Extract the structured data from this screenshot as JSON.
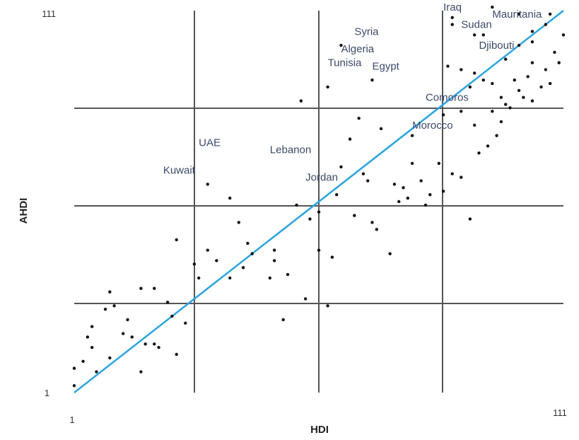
{
  "chart_data": {
    "type": "scatter",
    "xlabel": "HDI",
    "ylabel": "AHDI",
    "xlim": [
      1,
      111
    ],
    "ylim": [
      1,
      111
    ],
    "x_tick_labels": [
      {
        "value": 1,
        "label": "1"
      },
      {
        "value": 111,
        "label": "111"
      }
    ],
    "y_tick_labels": [
      {
        "value": 1,
        "label": "1"
      },
      {
        "value": 111,
        "label": "111"
      }
    ],
    "gridlines_x": [
      1,
      56,
      111
    ],
    "gridlines_y": [
      1,
      56,
      111
    ],
    "grid": true,
    "legend": false,
    "colors": {
      "points": "#111111",
      "fit_line": "#2aa3e0",
      "grid": "#555555"
    },
    "fit_line": {
      "x": [
        1,
        111
      ],
      "y": [
        1,
        111
      ]
    },
    "points": [
      {
        "x": 1,
        "y": 8
      },
      {
        "x": 3,
        "y": 10
      },
      {
        "x": 4,
        "y": 17
      },
      {
        "x": 5,
        "y": 20
      },
      {
        "x": 6,
        "y": 7
      },
      {
        "x": 8,
        "y": 25
      },
      {
        "x": 9,
        "y": 11
      },
      {
        "x": 10,
        "y": 26
      },
      {
        "x": 12,
        "y": 18
      },
      {
        "x": 13,
        "y": 22
      },
      {
        "x": 14,
        "y": 17
      },
      {
        "x": 16,
        "y": 7
      },
      {
        "x": 17,
        "y": 15
      },
      {
        "x": 19,
        "y": 15
      },
      {
        "x": 19,
        "y": 31
      },
      {
        "x": 20,
        "y": 14
      },
      {
        "x": 22,
        "y": 27
      },
      {
        "x": 23,
        "y": 23
      },
      {
        "x": 24,
        "y": 12
      },
      {
        "x": 26,
        "y": 21
      },
      {
        "x": 28,
        "y": 38
      },
      {
        "x": 29,
        "y": 34
      },
      {
        "x": 31,
        "y": 61
      },
      {
        "x": 33,
        "y": 39
      },
      {
        "x": 36,
        "y": 34
      },
      {
        "x": 38,
        "y": 50
      },
      {
        "x": 39,
        "y": 37
      },
      {
        "x": 40,
        "y": 44
      },
      {
        "x": 41,
        "y": 41
      },
      {
        "x": 45,
        "y": 34
      },
      {
        "x": 46,
        "y": 39
      },
      {
        "x": 48,
        "y": 22
      },
      {
        "x": 49,
        "y": 35
      },
      {
        "x": 51,
        "y": 55
      },
      {
        "x": 53,
        "y": 28
      },
      {
        "x": 54,
        "y": 51
      },
      {
        "x": 56,
        "y": 53
      },
      {
        "x": 58,
        "y": 26
      },
      {
        "x": 59,
        "y": 40
      },
      {
        "x": 60,
        "y": 58
      },
      {
        "x": 61,
        "y": 66
      },
      {
        "x": 63,
        "y": 74
      },
      {
        "x": 64,
        "y": 52
      },
      {
        "x": 65,
        "y": 80
      },
      {
        "x": 66,
        "y": 64
      },
      {
        "x": 67,
        "y": 62
      },
      {
        "x": 69,
        "y": 48
      },
      {
        "x": 70,
        "y": 77
      },
      {
        "x": 72,
        "y": 41
      },
      {
        "x": 73,
        "y": 61
      },
      {
        "x": 74,
        "y": 56
      },
      {
        "x": 75,
        "y": 60
      },
      {
        "x": 76,
        "y": 57
      },
      {
        "x": 77,
        "y": 67
      },
      {
        "x": 79,
        "y": 62
      },
      {
        "x": 80,
        "y": 55
      },
      {
        "x": 81,
        "y": 58
      },
      {
        "x": 83,
        "y": 67
      },
      {
        "x": 84,
        "y": 59
      },
      {
        "x": 86,
        "y": 64
      },
      {
        "x": 88,
        "y": 63
      },
      {
        "x": 90,
        "y": 51
      },
      {
        "x": 92,
        "y": 70
      },
      {
        "x": 94,
        "y": 72
      },
      {
        "x": 96,
        "y": 75
      },
      {
        "x": 97,
        "y": 79
      },
      {
        "x": 98,
        "y": 84
      },
      {
        "x": 100,
        "y": 91
      },
      {
        "x": 101,
        "y": 88
      },
      {
        "x": 102,
        "y": 86
      },
      {
        "x": 103,
        "y": 92
      },
      {
        "x": 104,
        "y": 96
      },
      {
        "x": 106,
        "y": 89
      },
      {
        "x": 107,
        "y": 94
      },
      {
        "x": 108,
        "y": 90
      },
      {
        "x": 109,
        "y": 99
      },
      {
        "x": 110,
        "y": 96
      },
      {
        "x": 111,
        "y": 104
      },
      {
        "x": 1,
        "y": 3
      },
      {
        "x": 5,
        "y": 14
      },
      {
        "x": 9,
        "y": 30
      },
      {
        "x": 16,
        "y": 31
      },
      {
        "x": 24,
        "y": 45
      },
      {
        "x": 31,
        "y": 42
      },
      {
        "x": 36,
        "y": 57
      },
      {
        "x": 46,
        "y": 42
      },
      {
        "x": 56,
        "y": 42
      },
      {
        "x": 68,
        "y": 50
      },
      {
        "x": 77,
        "y": 75
      },
      {
        "x": 84,
        "y": 81
      },
      {
        "x": 88,
        "y": 82
      },
      {
        "x": 91,
        "y": 78
      },
      {
        "x": 95,
        "y": 82
      },
      {
        "x": 99,
        "y": 83
      },
      {
        "x": 101,
        "y": 101
      },
      {
        "x": 104,
        "y": 105
      },
      {
        "x": 107,
        "y": 107
      },
      {
        "x": 86,
        "y": 109
      },
      {
        "x": 93,
        "y": 104
      },
      {
        "x": 98,
        "y": 97
      },
      {
        "x": 104,
        "y": 102
      },
      {
        "x": 104,
        "y": 85
      },
      {
        "x": 97,
        "y": 86
      },
      {
        "x": 93,
        "y": 91
      },
      {
        "x": 88,
        "y": 94
      },
      {
        "x": 91,
        "y": 104
      },
      {
        "x": 95,
        "y": 112
      },
      {
        "x": 101,
        "y": 110
      },
      {
        "x": 108,
        "y": 110
      },
      {
        "x": 61,
        "y": 101
      },
      {
        "x": 58,
        "y": 89
      },
      {
        "x": 68,
        "y": 91
      },
      {
        "x": 52,
        "y": 85
      },
      {
        "x": 90,
        "y": 89
      },
      {
        "x": 95,
        "y": 90
      },
      {
        "x": 91,
        "y": 93
      },
      {
        "x": 85,
        "y": 95
      },
      {
        "x": 86,
        "y": 107
      }
    ],
    "annotations": [
      {
        "label": "Iraq",
        "x": 84,
        "y": 111
      },
      {
        "label": "Mauritania",
        "x": 95,
        "y": 109
      },
      {
        "label": "Sudan",
        "x": 88,
        "y": 106
      },
      {
        "label": "Syria",
        "x": 64,
        "y": 104
      },
      {
        "label": "Djibouti",
        "x": 92,
        "y": 100
      },
      {
        "label": "Algeria",
        "x": 61,
        "y": 99
      },
      {
        "label": "Tunisia",
        "x": 58,
        "y": 95
      },
      {
        "label": "Egypt",
        "x": 68,
        "y": 94
      },
      {
        "label": "Comoros",
        "x": 80,
        "y": 85
      },
      {
        "label": "Morocco",
        "x": 77,
        "y": 77
      },
      {
        "label": "UAE",
        "x": 29,
        "y": 72
      },
      {
        "label": "Lebanon",
        "x": 45,
        "y": 70
      },
      {
        "label": "Kuwait",
        "x": 21,
        "y": 64
      },
      {
        "label": "Jordan",
        "x": 53,
        "y": 62
      }
    ]
  }
}
